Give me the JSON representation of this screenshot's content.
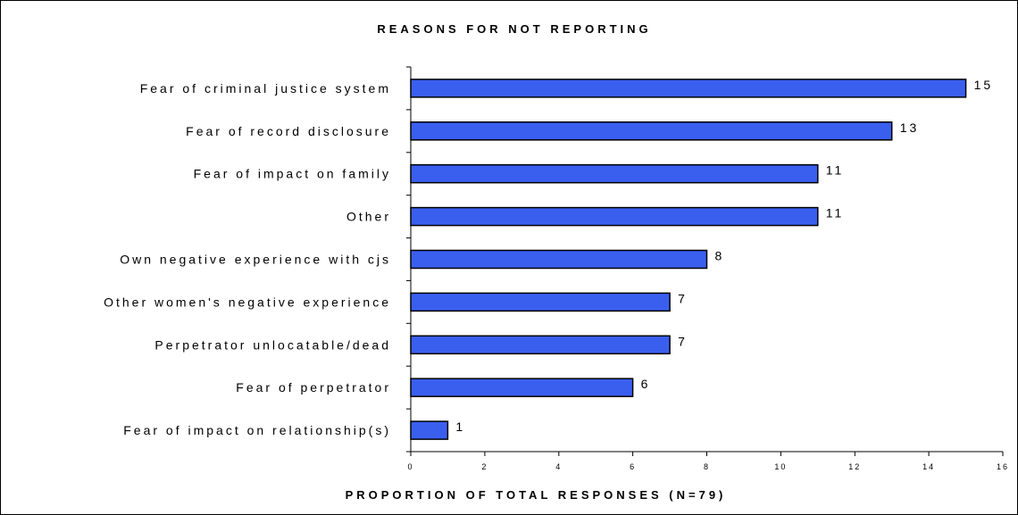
{
  "chart_data": {
    "type": "bar",
    "orientation": "horizontal",
    "title": "REASONS FOR NOT REPORTING",
    "xlabel": "PROPORTION OF TOTAL RESPONSES (N=79)",
    "ylabel": "",
    "xlim": [
      0,
      16
    ],
    "x_ticks": [
      0,
      2,
      4,
      6,
      8,
      10,
      12,
      14,
      16
    ],
    "categories": [
      "Fear of criminal justice system",
      "Fear of record disclosure",
      "Fear of impact on family",
      "Other",
      "Own negative experience with cjs",
      "Other women's negative experience",
      "Perpetrator unlocatable/dead",
      "Fear of perpetrator",
      "Fear of impact on relationship(s)"
    ],
    "values": [
      15,
      13,
      11,
      11,
      8,
      7,
      7,
      6,
      1
    ],
    "data_labels": true,
    "grid": false,
    "legend": "none",
    "colors": {
      "bar_fill": "#3a5fef",
      "bar_stroke": "#000000",
      "axis": "#000000",
      "text": "#000000"
    }
  }
}
